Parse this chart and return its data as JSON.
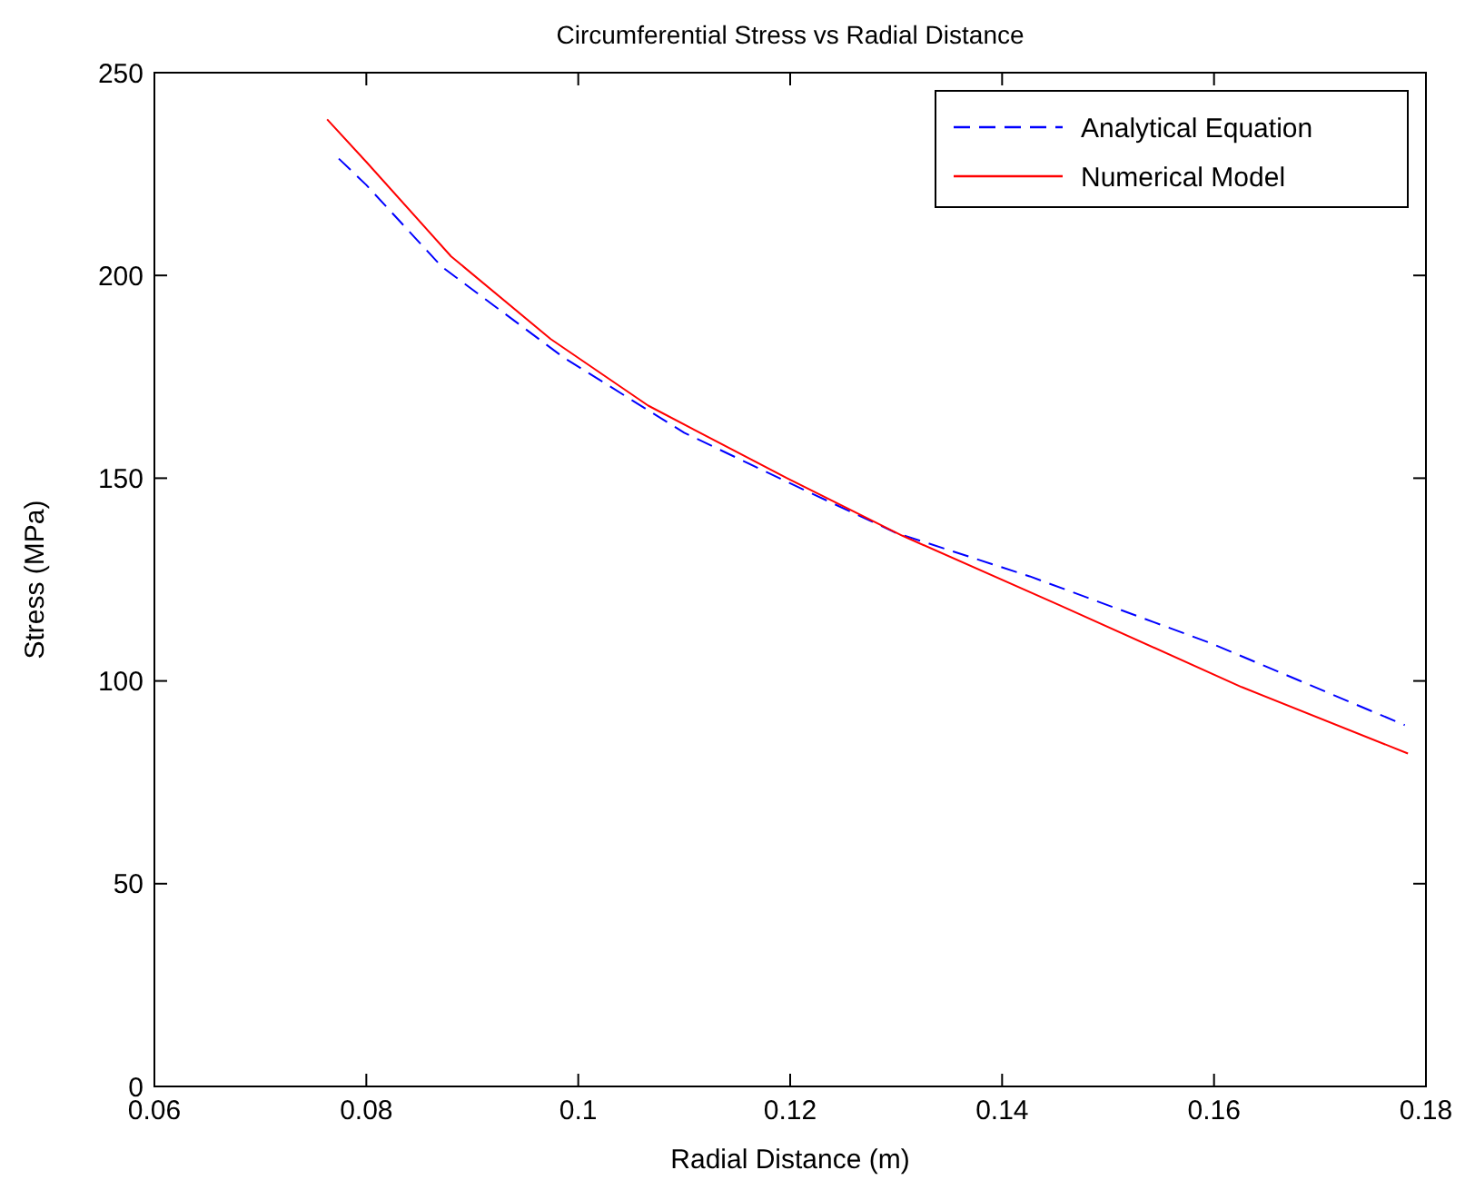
{
  "chart_data": {
    "type": "line",
    "title": "Circumferential Stress vs Radial Distance",
    "xlabel": "Radial Distance (m)",
    "ylabel": "Stress (MPa)",
    "xlim": [
      0.06,
      0.18
    ],
    "xticks": [
      0.06,
      0.08,
      0.1,
      0.12,
      0.14,
      0.16,
      0.18
    ],
    "ylim": [
      0,
      250
    ],
    "yticks": [
      0,
      50,
      100,
      150,
      200,
      250
    ],
    "grid": false,
    "legend": "top right",
    "series": [
      {
        "name": "Analytical Equation",
        "color": "#0000ff",
        "line_style": "dashed",
        "x": [
          0.0774,
          0.08,
          0.0871,
          0.0986,
          0.11,
          0.1214,
          0.13,
          0.1426,
          0.1597,
          0.178
        ],
        "values": [
          228.8,
          222.3,
          202.2,
          179.8,
          161.2,
          147,
          136.5,
          125.8,
          109.3,
          89.1
        ]
      },
      {
        "name": "Numerical Model",
        "color": "#ff0000",
        "line_style": "solid",
        "x": [
          0.0763,
          0.08,
          0.088,
          0.0974,
          0.1066,
          0.1197,
          0.1306,
          0.1454,
          0.1626,
          0.1783
        ],
        "values": [
          238.5,
          228,
          204.7,
          184.3,
          167.9,
          150,
          135.8,
          118.7,
          98.5,
          82.1
        ]
      }
    ]
  }
}
